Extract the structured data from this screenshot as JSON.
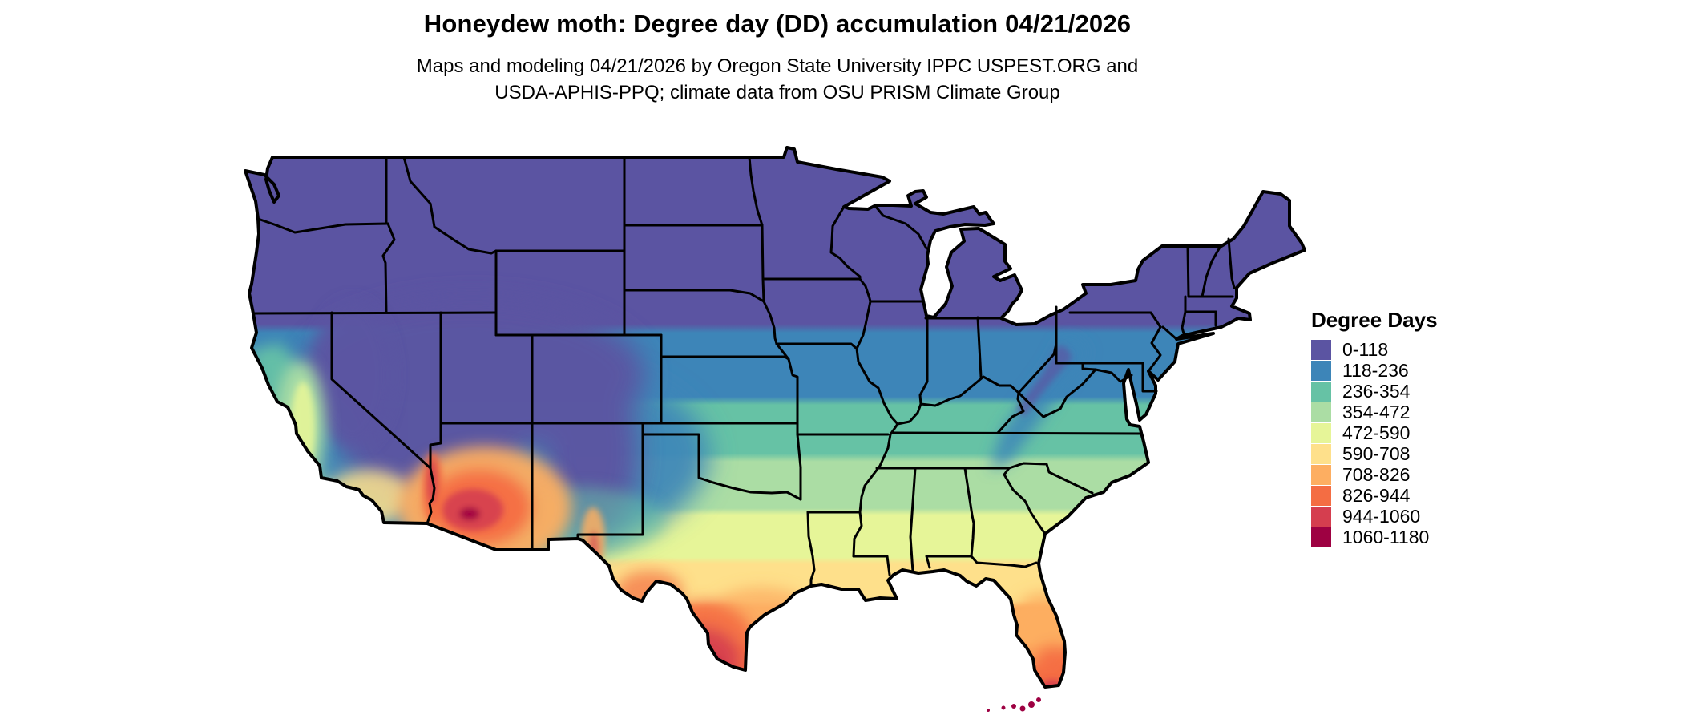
{
  "header": {
    "title": "Honeydew moth: Degree day (DD) accumulation 04/21/2026",
    "subtitle_line1": "Maps and modeling 04/21/2026 by Oregon State University IPPC USPEST.ORG and",
    "subtitle_line2": "USDA-APHIS-PPQ; climate data from OSU PRISM Climate Group"
  },
  "legend": {
    "title": "Degree Days",
    "items": [
      {
        "label": "0-118",
        "color": "#5b54a2"
      },
      {
        "label": "118-236",
        "color": "#3d85b8"
      },
      {
        "label": "236-354",
        "color": "#66c2a5"
      },
      {
        "label": "354-472",
        "color": "#abdda4"
      },
      {
        "label": "472-590",
        "color": "#e6f598"
      },
      {
        "label": "590-708",
        "color": "#fee08b"
      },
      {
        "label": "708-826",
        "color": "#fdae61"
      },
      {
        "label": "826-944",
        "color": "#f46d43"
      },
      {
        "label": "944-1060",
        "color": "#d53e4f"
      },
      {
        "label": "1060-1180",
        "color": "#9e0142"
      }
    ]
  },
  "map": {
    "region": "Conterminous United States",
    "border_color": "#000000",
    "background_color": "#ffffff"
  }
}
